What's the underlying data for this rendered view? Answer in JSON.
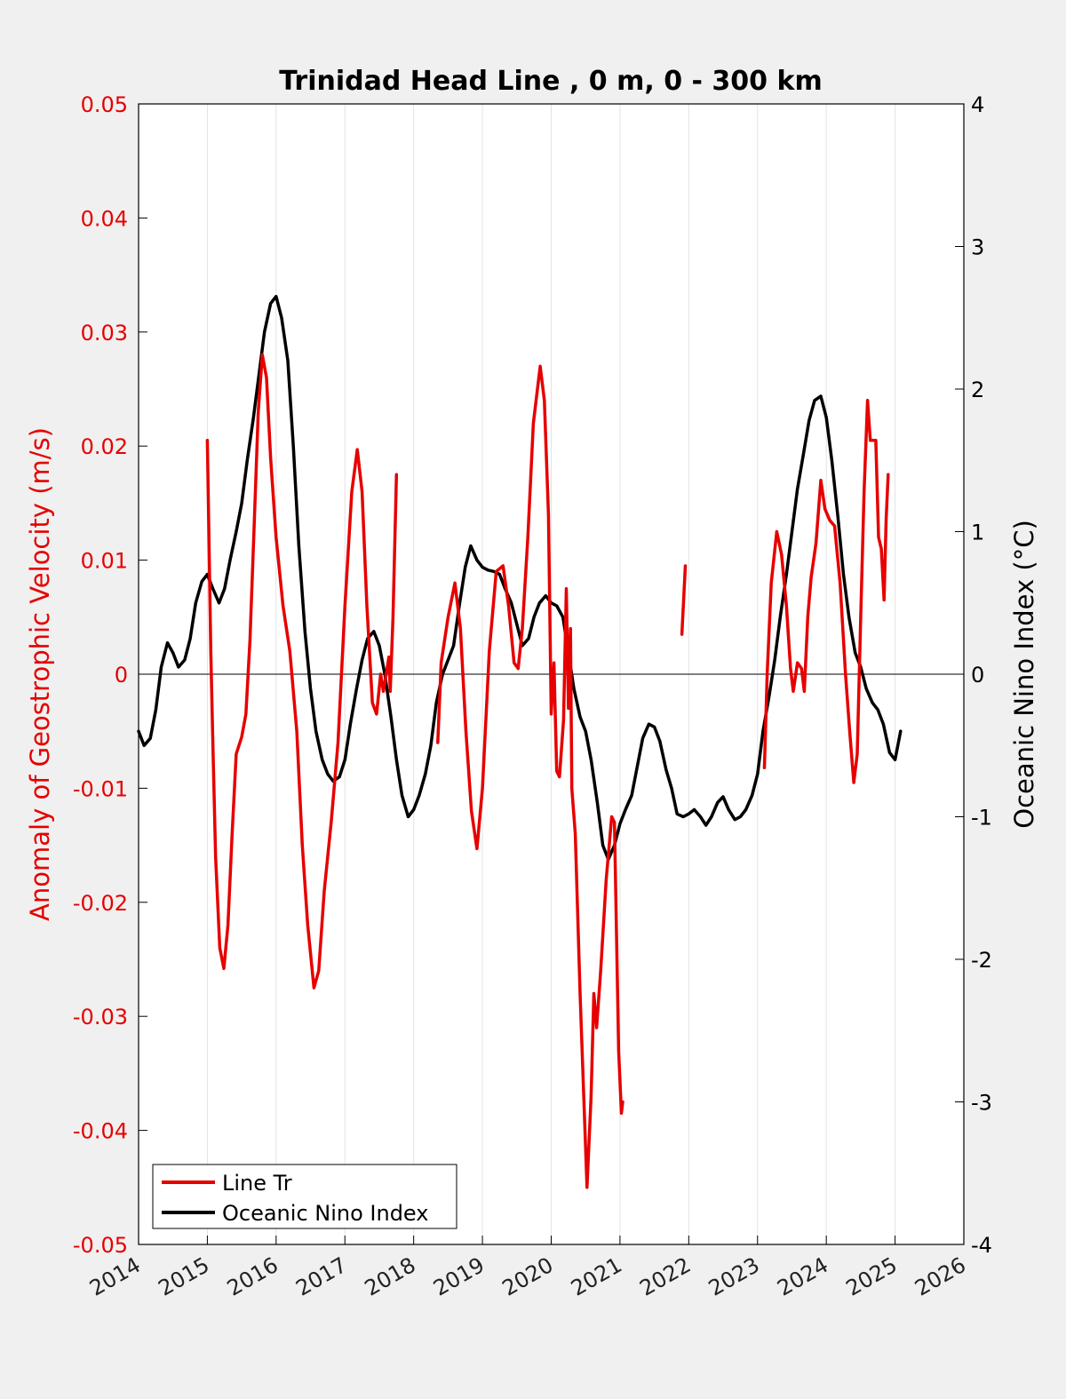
{
  "chart_data": {
    "type": "line",
    "title": "Trinidad Head Line , 0 m, 0 - 300 km",
    "xlabel": "",
    "ylabel_left": "Anomaly of Geostrophic Velocity (m/s)",
    "ylabel_right": "Oceanic Nino Index (°C)",
    "xlim": [
      2014,
      2026
    ],
    "ylim_left": [
      -0.05,
      0.05
    ],
    "ylim_right": [
      -4,
      4
    ],
    "x_ticks": [
      "2014",
      "2015",
      "2016",
      "2017",
      "2018",
      "2019",
      "2020",
      "2021",
      "2022",
      "2023",
      "2024",
      "2025",
      "2026"
    ],
    "y_ticks_left": [
      "0.05",
      "0.04",
      "0.03",
      "0.02",
      "0.01",
      "0",
      "-0.01",
      "-0.02",
      "-0.03",
      "-0.04",
      "-0.05"
    ],
    "y_ticks_right": [
      "4",
      "3",
      "2",
      "1",
      "0",
      "-1",
      "-2",
      "-3",
      "-4"
    ],
    "grid": "vertical",
    "legend_position": "bottom-left",
    "colors": {
      "velocity": "#e60000",
      "oni": "#000000",
      "left_axis": "#e60000",
      "right_axis": "#000000"
    },
    "series": [
      {
        "name": "Line Tr",
        "axis": "left",
        "segments": [
          [
            [
              2015.0,
              0.0205
            ],
            [
              2015.02,
              0.013
            ],
            [
              2015.05,
              0.002
            ],
            [
              2015.08,
              -0.006
            ],
            [
              2015.12,
              -0.016
            ],
            [
              2015.18,
              -0.024
            ],
            [
              2015.24,
              -0.0258
            ],
            [
              2015.3,
              -0.022
            ],
            [
              2015.36,
              -0.014
            ],
            [
              2015.42,
              -0.007
            ],
            [
              2015.5,
              -0.0055
            ],
            [
              2015.56,
              -0.0035
            ],
            [
              2015.62,
              0.003
            ],
            [
              2015.68,
              0.013
            ],
            [
              2015.74,
              0.023
            ],
            [
              2015.8,
              0.028
            ],
            [
              2015.86,
              0.026
            ],
            [
              2015.92,
              0.019
            ],
            [
              2016.0,
              0.012
            ],
            [
              2016.1,
              0.006
            ],
            [
              2016.2,
              0.002
            ],
            [
              2016.3,
              -0.005
            ],
            [
              2016.38,
              -0.015
            ],
            [
              2016.46,
              -0.022
            ],
            [
              2016.55,
              -0.0275
            ],
            [
              2016.62,
              -0.026
            ],
            [
              2016.7,
              -0.019
            ],
            [
              2016.8,
              -0.013
            ],
            [
              2016.9,
              -0.006
            ],
            [
              2017.0,
              0.006
            ],
            [
              2017.1,
              0.016
            ],
            [
              2017.18,
              0.0197
            ],
            [
              2017.25,
              0.016
            ],
            [
              2017.32,
              0.006
            ],
            [
              2017.4,
              -0.0025
            ],
            [
              2017.46,
              -0.0035
            ],
            [
              2017.52,
              -0.0
            ],
            [
              2017.56,
              -0.0015
            ],
            [
              2017.6,
              0.0
            ],
            [
              2017.64,
              0.0015
            ],
            [
              2017.66,
              -0.0015
            ],
            [
              2017.7,
              0.005
            ],
            [
              2017.75,
              0.0175
            ]
          ],
          [
            [
              2018.35,
              -0.006
            ],
            [
              2018.4,
              0.001
            ],
            [
              2018.5,
              0.005
            ],
            [
              2018.6,
              0.008
            ],
            [
              2018.68,
              0.004
            ],
            [
              2018.76,
              -0.005
            ],
            [
              2018.84,
              -0.012
            ],
            [
              2018.92,
              -0.0153
            ],
            [
              2019.0,
              -0.01
            ],
            [
              2019.1,
              0.002
            ],
            [
              2019.2,
              0.009
            ],
            [
              2019.3,
              0.0095
            ],
            [
              2019.38,
              0.006
            ],
            [
              2019.46,
              0.001
            ],
            [
              2019.52,
              0.0005
            ],
            [
              2019.58,
              0.004
            ],
            [
              2019.66,
              0.012
            ],
            [
              2019.74,
              0.022
            ],
            [
              2019.84,
              0.027
            ],
            [
              2019.9,
              0.024
            ],
            [
              2019.96,
              0.014
            ],
            [
              2020.0,
              -0.0035
            ],
            [
              2020.04,
              0.001
            ],
            [
              2020.08,
              -0.0085
            ],
            [
              2020.12,
              -0.009
            ],
            [
              2020.18,
              -0.004
            ],
            [
              2020.22,
              0.0075
            ],
            [
              2020.25,
              -0.003
            ],
            [
              2020.28,
              0.004
            ],
            [
              2020.3,
              -0.01
            ],
            [
              2020.35,
              -0.014
            ],
            [
              2020.42,
              -0.028
            ],
            [
              2020.52,
              -0.045
            ],
            [
              2020.58,
              -0.037
            ],
            [
              2020.62,
              -0.028
            ],
            [
              2020.66,
              -0.031
            ],
            [
              2020.72,
              -0.026
            ],
            [
              2020.8,
              -0.018
            ],
            [
              2020.88,
              -0.0125
            ],
            [
              2020.92,
              -0.013
            ],
            [
              2020.98,
              -0.033
            ],
            [
              2021.02,
              -0.0385
            ],
            [
              2021.04,
              -0.0375
            ]
          ],
          [
            [
              2021.9,
              0.0035
            ],
            [
              2021.95,
              0.0095
            ]
          ],
          [
            [
              2023.1,
              -0.0082
            ],
            [
              2023.14,
              0.0
            ],
            [
              2023.2,
              0.008
            ],
            [
              2023.28,
              0.0125
            ],
            [
              2023.35,
              0.0105
            ],
            [
              2023.42,
              0.006
            ],
            [
              2023.48,
              0.0005
            ],
            [
              2023.52,
              -0.0015
            ],
            [
              2023.58,
              0.001
            ],
            [
              2023.64,
              0.0005
            ],
            [
              2023.68,
              -0.0015
            ],
            [
              2023.73,
              0.005
            ],
            [
              2023.78,
              0.0085
            ],
            [
              2023.85,
              0.0115
            ],
            [
              2023.92,
              0.017
            ],
            [
              2023.98,
              0.0145
            ],
            [
              2024.05,
              0.0135
            ],
            [
              2024.12,
              0.013
            ],
            [
              2024.2,
              0.008
            ],
            [
              2024.28,
              0.0
            ],
            [
              2024.34,
              -0.005
            ],
            [
              2024.4,
              -0.0095
            ],
            [
              2024.45,
              -0.007
            ],
            [
              2024.5,
              0.005
            ],
            [
              2024.55,
              0.016
            ],
            [
              2024.6,
              0.024
            ],
            [
              2024.64,
              0.0205
            ],
            [
              2024.68,
              0.0205
            ],
            [
              2024.72,
              0.0205
            ],
            [
              2024.76,
              0.012
            ],
            [
              2024.8,
              0.011
            ],
            [
              2024.84,
              0.0065
            ],
            [
              2024.87,
              0.0135
            ],
            [
              2024.9,
              0.0175
            ]
          ]
        ]
      },
      {
        "name": "Oceanic Nino Index",
        "axis": "right",
        "segments": [
          [
            [
              2014.0,
              -0.4
            ],
            [
              2014.08,
              -0.5
            ],
            [
              2014.17,
              -0.45
            ],
            [
              2014.25,
              -0.25
            ],
            [
              2014.33,
              0.05
            ],
            [
              2014.42,
              0.22
            ],
            [
              2014.5,
              0.15
            ],
            [
              2014.58,
              0.05
            ],
            [
              2014.67,
              0.1
            ],
            [
              2014.75,
              0.25
            ],
            [
              2014.83,
              0.5
            ],
            [
              2014.92,
              0.65
            ],
            [
              2015.0,
              0.7
            ],
            [
              2015.08,
              0.6
            ],
            [
              2015.17,
              0.5
            ],
            [
              2015.25,
              0.6
            ],
            [
              2015.33,
              0.8
            ],
            [
              2015.42,
              1.0
            ],
            [
              2015.5,
              1.2
            ],
            [
              2015.58,
              1.5
            ],
            [
              2015.67,
              1.8
            ],
            [
              2015.75,
              2.1
            ],
            [
              2015.83,
              2.4
            ],
            [
              2015.92,
              2.6
            ],
            [
              2016.0,
              2.65
            ],
            [
              2016.08,
              2.5
            ],
            [
              2016.17,
              2.2
            ],
            [
              2016.25,
              1.6
            ],
            [
              2016.33,
              0.9
            ],
            [
              2016.42,
              0.3
            ],
            [
              2016.5,
              -0.1
            ],
            [
              2016.58,
              -0.4
            ],
            [
              2016.67,
              -0.6
            ],
            [
              2016.75,
              -0.7
            ],
            [
              2016.83,
              -0.75
            ],
            [
              2016.92,
              -0.72
            ],
            [
              2017.0,
              -0.6
            ],
            [
              2017.08,
              -0.35
            ],
            [
              2017.17,
              -0.1
            ],
            [
              2017.25,
              0.1
            ],
            [
              2017.33,
              0.25
            ],
            [
              2017.42,
              0.3
            ],
            [
              2017.5,
              0.2
            ],
            [
              2017.58,
              0.0
            ],
            [
              2017.67,
              -0.3
            ],
            [
              2017.75,
              -0.6
            ],
            [
              2017.83,
              -0.85
            ],
            [
              2017.92,
              -1.0
            ],
            [
              2018.0,
              -0.95
            ],
            [
              2018.08,
              -0.85
            ],
            [
              2018.17,
              -0.7
            ],
            [
              2018.25,
              -0.5
            ],
            [
              2018.33,
              -0.2
            ],
            [
              2018.42,
              0.0
            ],
            [
              2018.5,
              0.1
            ],
            [
              2018.58,
              0.2
            ],
            [
              2018.67,
              0.5
            ],
            [
              2018.75,
              0.75
            ],
            [
              2018.83,
              0.9
            ],
            [
              2018.92,
              0.8
            ],
            [
              2019.0,
              0.75
            ],
            [
              2019.08,
              0.73
            ],
            [
              2019.17,
              0.72
            ],
            [
              2019.25,
              0.7
            ],
            [
              2019.33,
              0.6
            ],
            [
              2019.42,
              0.5
            ],
            [
              2019.5,
              0.35
            ],
            [
              2019.58,
              0.2
            ],
            [
              2019.67,
              0.25
            ],
            [
              2019.75,
              0.4
            ],
            [
              2019.83,
              0.5
            ],
            [
              2019.92,
              0.55
            ],
            [
              2020.0,
              0.5
            ],
            [
              2020.08,
              0.48
            ],
            [
              2020.17,
              0.4
            ],
            [
              2020.25,
              0.15
            ],
            [
              2020.33,
              -0.1
            ],
            [
              2020.42,
              -0.3
            ],
            [
              2020.5,
              -0.4
            ],
            [
              2020.58,
              -0.6
            ],
            [
              2020.67,
              -0.9
            ],
            [
              2020.75,
              -1.2
            ],
            [
              2020.83,
              -1.3
            ],
            [
              2020.92,
              -1.2
            ],
            [
              2021.0,
              -1.05
            ],
            [
              2021.08,
              -0.95
            ],
            [
              2021.17,
              -0.85
            ],
            [
              2021.25,
              -0.65
            ],
            [
              2021.33,
              -0.45
            ],
            [
              2021.42,
              -0.35
            ],
            [
              2021.5,
              -0.37
            ],
            [
              2021.58,
              -0.47
            ],
            [
              2021.67,
              -0.67
            ],
            [
              2021.75,
              -0.8
            ],
            [
              2021.83,
              -0.98
            ],
            [
              2021.92,
              -1.0
            ],
            [
              2022.0,
              -0.98
            ],
            [
              2022.08,
              -0.95
            ],
            [
              2022.17,
              -1.0
            ],
            [
              2022.25,
              -1.06
            ],
            [
              2022.33,
              -1.0
            ],
            [
              2022.42,
              -0.9
            ],
            [
              2022.5,
              -0.86
            ],
            [
              2022.58,
              -0.95
            ],
            [
              2022.67,
              -1.02
            ],
            [
              2022.75,
              -1.0
            ],
            [
              2022.83,
              -0.95
            ],
            [
              2022.92,
              -0.85
            ],
            [
              2023.0,
              -0.7
            ],
            [
              2023.08,
              -0.4
            ],
            [
              2023.17,
              -0.15
            ],
            [
              2023.25,
              0.1
            ],
            [
              2023.33,
              0.4
            ],
            [
              2023.42,
              0.7
            ],
            [
              2023.5,
              1.0
            ],
            [
              2023.58,
              1.3
            ],
            [
              2023.67,
              1.55
            ],
            [
              2023.75,
              1.78
            ],
            [
              2023.83,
              1.92
            ],
            [
              2023.92,
              1.95
            ],
            [
              2024.0,
              1.8
            ],
            [
              2024.08,
              1.5
            ],
            [
              2024.17,
              1.1
            ],
            [
              2024.25,
              0.7
            ],
            [
              2024.33,
              0.4
            ],
            [
              2024.42,
              0.15
            ],
            [
              2024.5,
              0.05
            ],
            [
              2024.58,
              -0.1
            ],
            [
              2024.67,
              -0.2
            ],
            [
              2024.75,
              -0.25
            ],
            [
              2024.83,
              -0.35
            ],
            [
              2024.92,
              -0.55
            ],
            [
              2025.0,
              -0.6
            ],
            [
              2025.08,
              -0.4
            ]
          ]
        ]
      }
    ]
  }
}
